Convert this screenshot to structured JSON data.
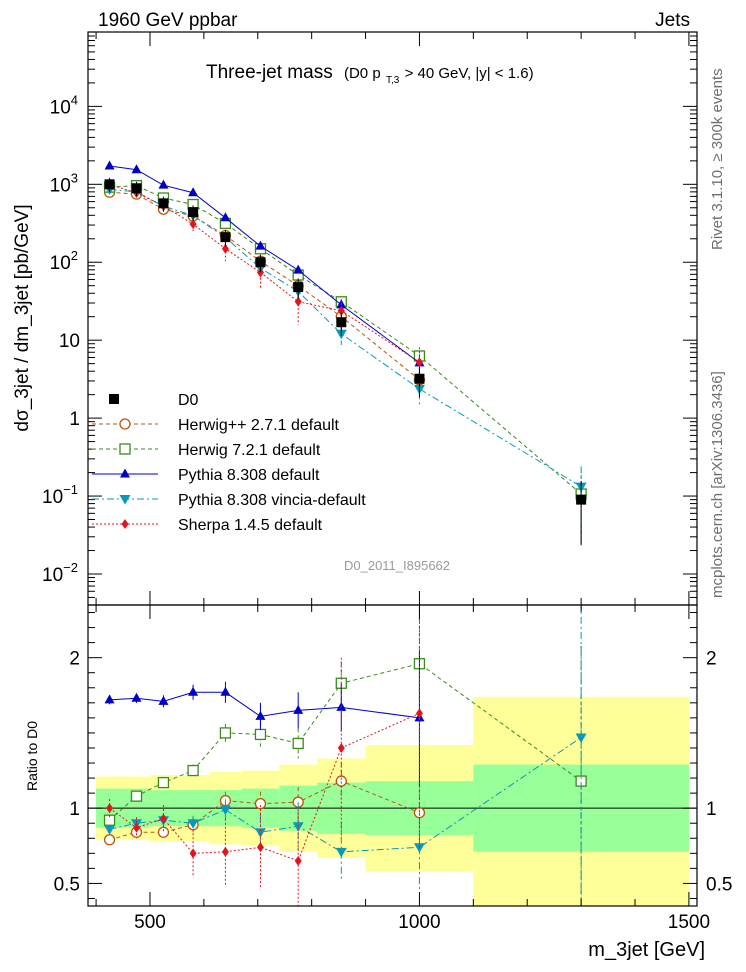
{
  "header": {
    "left": "1960 GeV ppbar",
    "right": "Jets",
    "side_top": "Rivet 3.1.10, ≥ 300k events",
    "side_bottom": "mcplots.cern.ch [arXiv:1306.3436]",
    "watermark": "D0_2011_I895662"
  },
  "title": {
    "main": "Three-jet mass",
    "cut_prefix": "(D0 p",
    "cut_sub": "T,3",
    "cut_suffix": " > 40 GeV, |y| < 1.6)"
  },
  "chart_data": {
    "type": "line",
    "upper": {
      "ylabel": "dσ_3jet / dm_3jet [pb/GeV]",
      "yscale": "log",
      "ylim": [
        0.004,
        90000
      ],
      "yticks": [
        {
          "v": 0.01,
          "base": "10",
          "exp": "−2"
        },
        {
          "v": 0.1,
          "base": "10",
          "exp": "−1"
        },
        {
          "v": 1,
          "base": "1",
          "exp": ""
        },
        {
          "v": 10,
          "base": "10",
          "exp": ""
        },
        {
          "v": 100,
          "base": "10",
          "exp": "2"
        },
        {
          "v": 1000,
          "base": "10",
          "exp": "3"
        },
        {
          "v": 10000,
          "base": "10",
          "exp": "4"
        }
      ]
    },
    "lower": {
      "ylabel": "Ratio to D0",
      "ylim": [
        0.35,
        2.35
      ],
      "yticks": [
        {
          "v": 0.5,
          "label": "0.5"
        },
        {
          "v": 1,
          "label": "1"
        },
        {
          "v": 2,
          "label": "2"
        }
      ]
    },
    "x": {
      "label": "m_3jet [GeV]",
      "lim": [
        385,
        1515
      ],
      "ticks": [
        {
          "v": 500,
          "label": "500"
        },
        {
          "v": 1000,
          "label": "1000"
        },
        {
          "v": 1500,
          "label": "1500"
        }
      ]
    },
    "bins": [
      400,
      450,
      500,
      550,
      610,
      670,
      740,
      810,
      900,
      1100,
      1500
    ],
    "x_points": [
      425,
      475,
      525,
      580,
      640,
      705,
      775,
      855,
      1000,
      1300
    ],
    "data": {
      "name": "D0",
      "values": [
        1000,
        890,
        570,
        440,
        210,
        100,
        48,
        17,
        3.2,
        0.09
      ],
      "band_stat": [
        0.13,
        0.13,
        0.12,
        0.12,
        0.12,
        0.13,
        0.15,
        0.17,
        0.18,
        0.29
      ],
      "band_total": [
        0.21,
        0.21,
        0.22,
        0.22,
        0.24,
        0.25,
        0.29,
        0.33,
        0.42,
        0.74
      ]
    },
    "series": [
      {
        "name": "Herwig++ 2.7.1 default",
        "color": "#b8560f",
        "style": "open-circle",
        "dash": "4,3",
        "ratio": [
          0.79,
          0.84,
          0.84,
          0.89,
          1.05,
          1.03,
          1.04,
          1.18,
          0.97,
          null
        ],
        "ratio_err": [
          0.02,
          0.02,
          0.03,
          0.05,
          0.06,
          0.08,
          0.1,
          0.12,
          0.25,
          null
        ]
      },
      {
        "name": "Herwig 7.2.1 default",
        "color": "#3c8a1f",
        "style": "open-square",
        "dash": "4,3",
        "ratio": [
          0.92,
          1.08,
          1.17,
          1.25,
          1.5,
          1.49,
          1.43,
          1.83,
          1.96,
          1.18
        ],
        "ratio_err": [
          0.02,
          0.02,
          0.03,
          0.04,
          0.06,
          0.08,
          0.1,
          0.14,
          0.3,
          0.9
        ]
      },
      {
        "name": "Pythia 8.308 default",
        "color": "#0000c8",
        "style": "triangle-up",
        "dash": "",
        "ratio": [
          1.72,
          1.73,
          1.71,
          1.77,
          1.77,
          1.61,
          1.65,
          1.67,
          1.6,
          null
        ],
        "ratio_err": [
          0.03,
          0.03,
          0.04,
          0.05,
          0.07,
          0.09,
          0.12,
          0.16,
          0.45,
          null
        ]
      },
      {
        "name": "Pythia 8.308 vincia-default",
        "color": "#0898b8",
        "style": "triangle-down",
        "dash": "7,3,2,3",
        "ratio": [
          0.86,
          0.9,
          0.92,
          0.9,
          0.99,
          0.84,
          0.88,
          0.71,
          0.74,
          1.47
        ],
        "ratio_err": [
          0.03,
          0.03,
          0.04,
          0.05,
          0.07,
          0.12,
          0.16,
          0.2,
          0.3,
          1.2
        ]
      },
      {
        "name": "Sherpa 1.4.5 default",
        "color": "#e3141c",
        "style": "diamond",
        "dash": "2,2",
        "ratio": [
          1.0,
          0.87,
          0.93,
          0.7,
          0.71,
          0.74,
          0.65,
          1.4,
          1.63,
          null
        ],
        "ratio_err": [
          0.06,
          0.07,
          0.09,
          0.16,
          0.22,
          0.28,
          0.32,
          0.6,
          0.9,
          null
        ]
      }
    ]
  }
}
